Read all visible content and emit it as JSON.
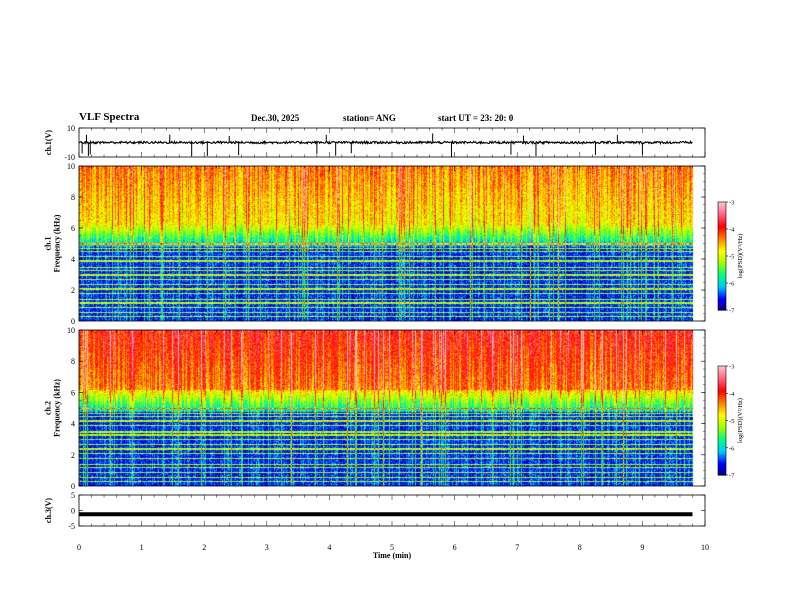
{
  "header": {
    "title": "VLF Spectra",
    "date": "Dec.30, 2025",
    "station": "station= ANG",
    "start_ut": "start  UT  =   23: 20: 0"
  },
  "colors": {
    "spectrum_stops": [
      "#000080",
      "#0000ff",
      "#00c8ff",
      "#00ff80",
      "#a0ff00",
      "#ffff00",
      "#ff8000",
      "#ff0000",
      "#ff6080",
      "#ffc0c0"
    ],
    "line": "#000000"
  },
  "chart_data": [
    {
      "type": "line",
      "panel": "ch1-waveform",
      "ylabel": "ch.1(V)",
      "ylim": [
        -10,
        10
      ],
      "yticks": [
        "10",
        "-10"
      ],
      "xlim": [
        0,
        10
      ],
      "baseline": 0,
      "spikes_min": [
        0.05,
        0.12,
        0.15,
        0.18,
        1.45,
        1.8,
        2.05,
        2.4,
        2.55,
        3.8,
        3.95,
        4.1,
        4.35,
        5.65,
        5.95,
        6.9,
        7.1,
        7.3,
        8.25,
        8.6,
        9.0
      ]
    },
    {
      "type": "heatmap",
      "panel": "ch1-spectrogram",
      "ylabel": "ch.1\nFrequency  (kHz)",
      "xlim": [
        0,
        10
      ],
      "ylim": [
        0,
        10
      ],
      "yticks": [
        "0",
        "2",
        "4",
        "6",
        "8",
        "10"
      ],
      "colorbar": {
        "label": "log(PSD)(V²/Hz)",
        "range": [
          -7,
          -3
        ],
        "ticks": [
          "-3",
          "-4",
          "-5",
          "-6",
          "-7"
        ]
      },
      "intensity": "moderate"
    },
    {
      "type": "heatmap",
      "panel": "ch2-spectrogram",
      "ylabel": "ch.2\nFrequency  (kHz)",
      "xlim": [
        0,
        10
      ],
      "ylim": [
        0,
        10
      ],
      "yticks": [
        "0",
        "2",
        "4",
        "6",
        "8",
        "10"
      ],
      "colorbar": {
        "label": "log(PSD)(V²/Hz)",
        "range": [
          -7,
          -3
        ],
        "ticks": [
          "-3",
          "-4",
          "-5",
          "-6",
          "-7"
        ]
      },
      "intensity": "high"
    },
    {
      "type": "line",
      "panel": "ch3-waveform",
      "ylabel": "ch.3(V)",
      "ylim": [
        -5,
        5
      ],
      "yticks": [
        "5",
        "0",
        "-5"
      ],
      "xlim": [
        0,
        10
      ],
      "baseline": -1.2
    }
  ],
  "xaxis": {
    "label": "Time  (min)",
    "ticks": [
      "0",
      "1",
      "2",
      "3",
      "4",
      "5",
      "6",
      "7",
      "8",
      "9",
      "10"
    ]
  }
}
